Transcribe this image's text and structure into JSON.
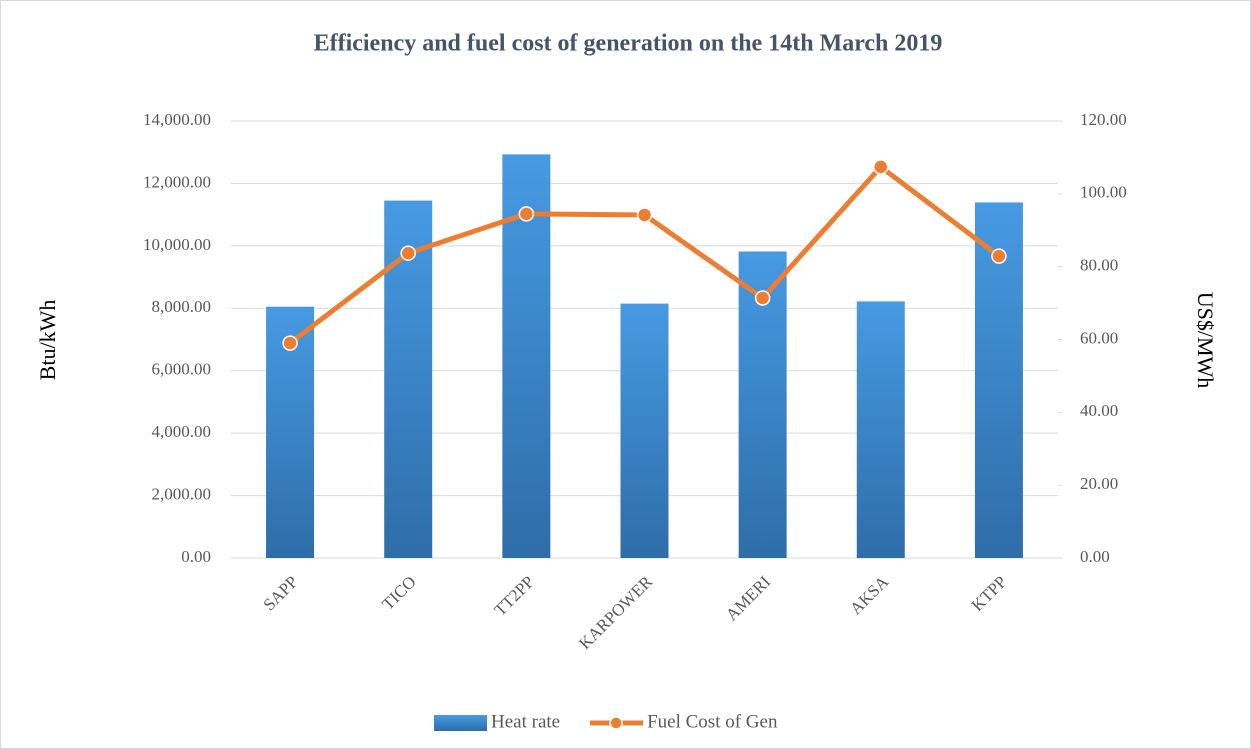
{
  "chart_data": {
    "type": "bar",
    "title": "Efficiency and fuel cost of  generation on the 14th March 2019",
    "ylabel": "Btu/kWh",
    "y2label": "US$/MWh",
    "categories": [
      "SAPP",
      "TICO",
      "TT2PP",
      "KARPOWER",
      "AMERI",
      "AKSA",
      "KTPP"
    ],
    "series": [
      {
        "name": "Heat rate",
        "type": "bar",
        "color": "#3f8fd6",
        "values": [
          8050,
          11450,
          12930,
          8150,
          9820,
          8220,
          11390
        ]
      },
      {
        "name": "Fuel Cost of Gen",
        "type": "line",
        "axis": "y2",
        "color": "#ed7d31",
        "values": [
          59.0,
          83.7,
          94.5,
          94.2,
          71.4,
          107.4,
          82.9
        ]
      }
    ],
    "ylim": [
      0,
      14000
    ],
    "yticks": [
      {
        "value": 0,
        "label": "0.00"
      },
      {
        "value": 2000,
        "label": "2,000.00"
      },
      {
        "value": 4000,
        "label": "4,000.00"
      },
      {
        "value": 6000,
        "label": "6,000.00"
      },
      {
        "value": 8000,
        "label": "8,000.00"
      },
      {
        "value": 10000,
        "label": "10,000.00"
      },
      {
        "value": 12000,
        "label": "12,000.00"
      },
      {
        "value": 14000,
        "label": "14,000.00"
      }
    ],
    "y2lim": [
      0,
      120
    ],
    "y2ticks": [
      {
        "value": 0,
        "label": "0.00"
      },
      {
        "value": 20,
        "label": "20.00"
      },
      {
        "value": 40,
        "label": "40.00"
      },
      {
        "value": 60,
        "label": "60.00"
      },
      {
        "value": 80,
        "label": "80.00"
      },
      {
        "value": 100,
        "label": "100.00"
      },
      {
        "value": 120,
        "label": "120.00"
      }
    ],
    "grid": true,
    "legend": "bottom"
  }
}
